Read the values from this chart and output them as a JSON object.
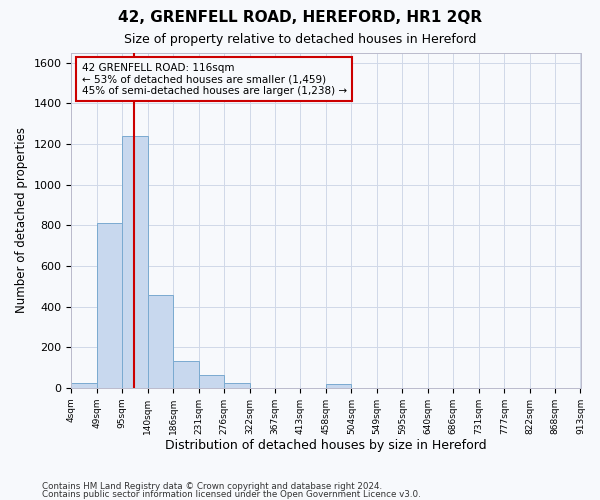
{
  "title": "42, GRENFELL ROAD, HEREFORD, HR1 2QR",
  "subtitle": "Size of property relative to detached houses in Hereford",
  "xlabel": "Distribution of detached houses by size in Hereford",
  "ylabel": "Number of detached properties",
  "bar_color": "#c8d8ee",
  "bar_edge_color": "#7aaad0",
  "bin_edges": [
    4,
    49,
    95,
    140,
    186,
    231,
    276,
    322,
    367,
    413,
    458,
    504,
    549,
    595,
    640,
    686,
    731,
    777,
    822,
    868,
    913
  ],
  "bin_labels": [
    "4sqm",
    "49sqm",
    "95sqm",
    "140sqm",
    "186sqm",
    "231sqm",
    "276sqm",
    "322sqm",
    "367sqm",
    "413sqm",
    "458sqm",
    "504sqm",
    "549sqm",
    "595sqm",
    "640sqm",
    "686sqm",
    "731sqm",
    "777sqm",
    "822sqm",
    "868sqm",
    "913sqm"
  ],
  "bar_heights": [
    25,
    810,
    1240,
    455,
    130,
    62,
    25,
    0,
    0,
    0,
    18,
    0,
    0,
    0,
    0,
    0,
    0,
    0,
    0,
    0
  ],
  "ylim": [
    0,
    1650
  ],
  "yticks": [
    0,
    200,
    400,
    600,
    800,
    1000,
    1200,
    1400,
    1600
  ],
  "vline_x": 116,
  "vline_color": "#cc0000",
  "annotation_line1": "42 GRENFELL ROAD: 116sqm",
  "annotation_line2": "← 53% of detached houses are smaller (1,459)",
  "annotation_line3": "45% of semi-detached houses are larger (1,238) →",
  "annotation_box_color": "#cc0000",
  "footer1": "Contains HM Land Registry data © Crown copyright and database right 2024.",
  "footer2": "Contains public sector information licensed under the Open Government Licence v3.0.",
  "bg_color": "#f7f9fc",
  "grid_color": "#d0d8e8"
}
